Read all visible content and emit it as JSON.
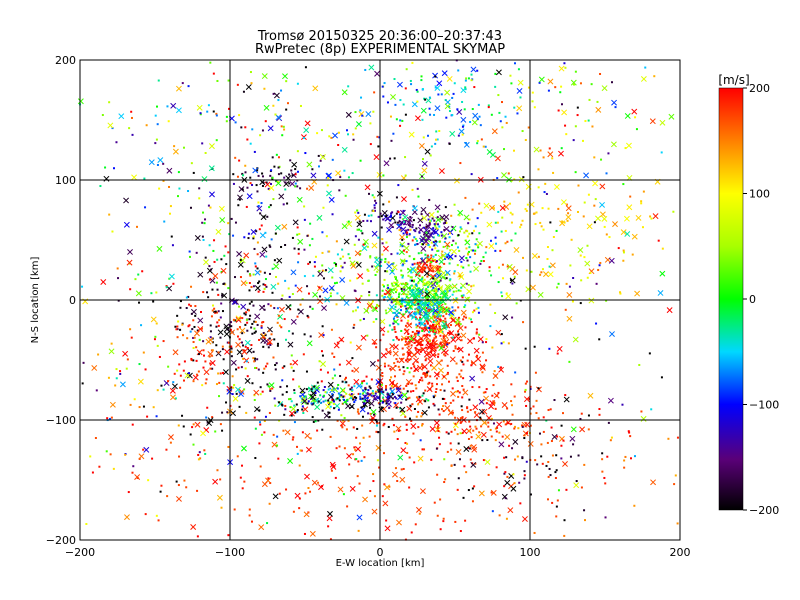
{
  "chart_data": {
    "type": "scatter",
    "title": "Tromsø 20150325 20:36:00–20:37:43",
    "subtitle": "RwPretec (8p) EXPERIMENTAL SKYMAP",
    "xlabel": "E-W location [km]",
    "ylabel": "N-S location [km]",
    "xlim": [
      -200,
      200
    ],
    "ylim": [
      -200,
      200
    ],
    "x_ticks": [
      "−200",
      "−100",
      "0",
      "100",
      "200"
    ],
    "y_ticks": [
      "−200",
      "−100",
      "0",
      "100",
      "200"
    ],
    "grid": true,
    "colorbar": {
      "title": "[m/s]",
      "range": [
        -200,
        200
      ],
      "ticks": [
        "−200",
        "−100",
        "0",
        "100",
        "200"
      ],
      "placement": "right"
    },
    "clusters": [
      {
        "x": 35,
        "y": -28,
        "sx": 14,
        "sy": 12,
        "v": 190,
        "n": 260,
        "jit": 15
      },
      {
        "x": 25,
        "y": -60,
        "sx": 30,
        "sy": 18,
        "v": 185,
        "n": 200,
        "jit": 15
      },
      {
        "x": 30,
        "y": -100,
        "sx": 55,
        "sy": 22,
        "v": 170,
        "n": 180,
        "jit": 25
      },
      {
        "x": -10,
        "y": -150,
        "sx": 90,
        "sy": 28,
        "v": 180,
        "n": 180,
        "jit": 20
      },
      {
        "x": 75,
        "y": -95,
        "sx": 20,
        "sy": 15,
        "v": 180,
        "n": 60,
        "jit": 15
      },
      {
        "x": 25,
        "y": 5,
        "sx": 15,
        "sy": 12,
        "v": 30,
        "n": 200,
        "jit": 40
      },
      {
        "x": 28,
        "y": -5,
        "sx": 10,
        "sy": 10,
        "v": -40,
        "n": 150,
        "jit": 25
      },
      {
        "x": 40,
        "y": 35,
        "sx": 14,
        "sy": 20,
        "v": 20,
        "n": 160,
        "jit": 60
      },
      {
        "x": 32,
        "y": 28,
        "sx": 5,
        "sy": 4,
        "v": 185,
        "n": 40,
        "jit": 10
      },
      {
        "x": 30,
        "y": 60,
        "sx": 10,
        "sy": 8,
        "v": -150,
        "n": 80,
        "jit": 20
      },
      {
        "x": 5,
        "y": 70,
        "sx": 8,
        "sy": 8,
        "v": -150,
        "n": 40,
        "jit": 30
      },
      {
        "x": 0,
        "y": 20,
        "sx": 60,
        "sy": 30,
        "v": 20,
        "n": 280,
        "jit": 90
      },
      {
        "x": -30,
        "y": -80,
        "sx": 25,
        "sy": 6,
        "v": -30,
        "n": 140,
        "jit": 60
      },
      {
        "x": -25,
        "y": -85,
        "sx": 40,
        "sy": 10,
        "v": -200,
        "n": 100,
        "jit": 10
      },
      {
        "x": 0,
        "y": -80,
        "sx": 10,
        "sy": 6,
        "v": -140,
        "n": 50,
        "jit": 30
      },
      {
        "x": -95,
        "y": -20,
        "sx": 20,
        "sy": 25,
        "v": -190,
        "n": 140,
        "jit": 20
      },
      {
        "x": -95,
        "y": -20,
        "sx": 20,
        "sy": 25,
        "v": 180,
        "n": 100,
        "jit": 20
      },
      {
        "x": -120,
        "y": -45,
        "sx": 10,
        "sy": 12,
        "v": 180,
        "n": 40,
        "jit": 20
      },
      {
        "x": -70,
        "y": 100,
        "sx": 15,
        "sy": 10,
        "v": -190,
        "n": 50,
        "jit": 20
      },
      {
        "x": -60,
        "y": 40,
        "sx": 50,
        "sy": 40,
        "v": -180,
        "n": 80,
        "jit": 20
      },
      {
        "x": -60,
        "y": 60,
        "sx": 60,
        "sy": 50,
        "v": 0,
        "n": 150,
        "jit": 150
      },
      {
        "x": 120,
        "y": 60,
        "sx": 40,
        "sy": 30,
        "v": 110,
        "n": 150,
        "jit": 30
      },
      {
        "x": 45,
        "y": 170,
        "sx": 25,
        "sy": 18,
        "v": -60,
        "n": 80,
        "jit": 30
      },
      {
        "x": -100,
        "y": 150,
        "sx": 60,
        "sy": 35,
        "v": 20,
        "n": 120,
        "jit": 100
      },
      {
        "x": 60,
        "y": 150,
        "sx": 40,
        "sy": 40,
        "v": 60,
        "n": 100,
        "jit": 100
      },
      {
        "x": 140,
        "y": 150,
        "sx": 40,
        "sy": 40,
        "v": 60,
        "n": 60,
        "jit": 100
      },
      {
        "x": 95,
        "y": -130,
        "sx": 30,
        "sy": 25,
        "v": -190,
        "n": 60,
        "jit": 20
      },
      {
        "x": -110,
        "y": -80,
        "sx": 50,
        "sy": 30,
        "v": -10,
        "n": 100,
        "jit": 150
      },
      {
        "x": 140,
        "y": -140,
        "sx": 40,
        "sy": 40,
        "v": 170,
        "n": 40,
        "jit": 30
      },
      {
        "x": -170,
        "y": -100,
        "sx": 30,
        "sy": 60,
        "v": 150,
        "n": 50,
        "jit": 50
      },
      {
        "x": 0,
        "y": 0,
        "sx": 120,
        "sy": 120,
        "v": 0,
        "n": 400,
        "jit": 200
      }
    ]
  }
}
